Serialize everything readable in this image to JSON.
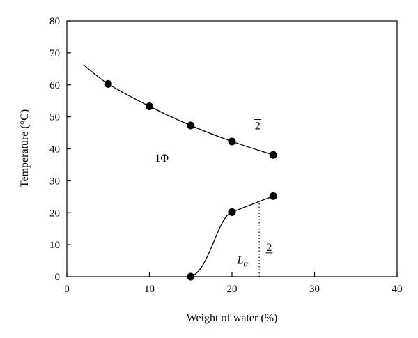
{
  "chart_data": {
    "type": "line",
    "xlabel": "Weight of water (%)",
    "ylabel": "Temperature (°C)",
    "xlim": [
      0,
      40
    ],
    "ylim": [
      0,
      80
    ],
    "xticks": [
      0,
      10,
      20,
      30,
      40
    ],
    "yticks": [
      0,
      10,
      20,
      30,
      40,
      50,
      60,
      70,
      80
    ],
    "grid": false,
    "series": [
      {
        "points": [
          {
            "x": 5,
            "y": 60.3
          },
          {
            "x": 10,
            "y": 53.3
          },
          {
            "x": 15,
            "y": 47.3
          },
          {
            "x": 20,
            "y": 42.3
          },
          {
            "x": 25,
            "y": 38.1
          }
        ],
        "curve_start": {
          "x": 2,
          "y": 66.3
        }
      },
      {
        "points": [
          {
            "x": 15,
            "y": 0
          },
          {
            "x": 20,
            "y": 20.2
          },
          {
            "x": 25,
            "y": 25.2
          }
        ]
      }
    ],
    "boundary_dotted": {
      "x": 23.3,
      "y_from": 0,
      "y_to": 23.6
    },
    "annotations": [
      {
        "text": "1Φ",
        "x": 11.5,
        "y": 36
      },
      {
        "text": "2",
        "overline": true,
        "x": 23.1,
        "y": 46.1
      },
      {
        "text": "L",
        "subscript": "α",
        "italic": true,
        "x": 21.3,
        "y": 4
      },
      {
        "text": "2",
        "underline": true,
        "x": 24.5,
        "y": 8.1
      }
    ]
  }
}
